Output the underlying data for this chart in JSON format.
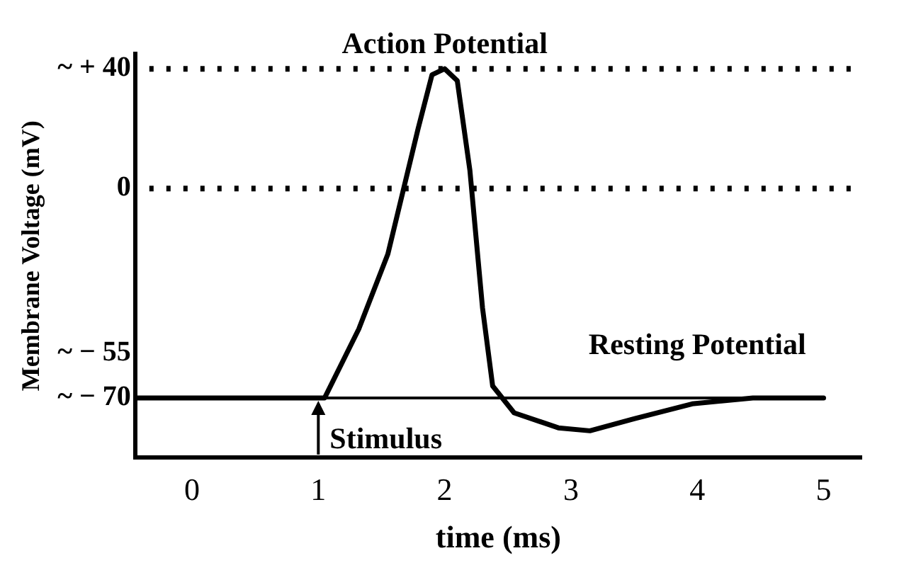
{
  "chart_data": {
    "type": "line",
    "xlabel": "time (ms)",
    "ylabel": "Membrane Voltage (mV)",
    "xlim": [
      -0.45,
      5.3
    ],
    "xticks": [
      0,
      1,
      2,
      3,
      4,
      5
    ],
    "ylim": [
      -90,
      45
    ],
    "yticks": [
      {
        "value": 40,
        "label": "~ + 40"
      },
      0,
      {
        "value": -55,
        "label": "~ − 55"
      },
      {
        "value": -70,
        "label": "~ − 70"
      }
    ],
    "grid": false,
    "legend": false,
    "marker": "none",
    "line_style": "solid",
    "series": [
      {
        "color": "#000000",
        "x": [
          -0.45,
          1.05,
          1.32,
          1.55,
          1.79,
          1.9,
          2.0,
          2.1,
          2.2,
          2.3,
          2.38,
          2.55,
          2.9,
          3.15,
          3.5,
          3.96,
          4.44,
          5.0
        ],
        "values": [
          -70,
          -70,
          -47,
          -22,
          20,
          38,
          40,
          36,
          6,
          -40,
          -66,
          -75,
          -80,
          -81,
          -77,
          -72,
          -70,
          -70
        ]
      }
    ],
    "ref_lines": [
      {
        "axis": "y",
        "value": 40,
        "color": "#000000",
        "line_style": "dotted"
      },
      {
        "axis": "y",
        "value": 0,
        "color": "#000000",
        "line_style": "dotted"
      },
      {
        "axis": "y",
        "value": -70,
        "color": "#000000",
        "line_style": "solid"
      }
    ],
    "annotations": [
      {
        "text": "Action Potential",
        "x": 2.0,
        "y": 40
      },
      {
        "text": "Resting Potential",
        "x": 4.0,
        "y": -70
      },
      {
        "text": "Stimulus",
        "x": 1.0,
        "y": -70
      }
    ]
  }
}
